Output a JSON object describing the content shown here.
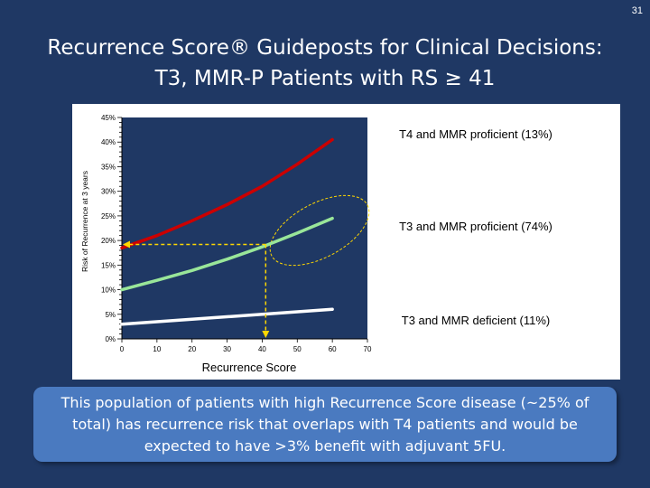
{
  "slide": {
    "number": "31"
  },
  "title": {
    "line1": "Recurrence Score® Guideposts for Clinical Decisions:",
    "line2": "T3, MMR-P Patients with RS ≥ 41"
  },
  "chart_data": {
    "type": "line",
    "xlabel": "Recurrence Score",
    "ylabel": "Risk of Recurrence at 3 years",
    "xlim": [
      0,
      70
    ],
    "ylim": [
      0,
      45
    ],
    "x_ticks": [
      "0",
      "10",
      "20",
      "30",
      "40",
      "50",
      "60",
      "70"
    ],
    "y_ticks": [
      "0%",
      "5%",
      "10%",
      "15%",
      "20%",
      "25%",
      "30%",
      "35%",
      "40%",
      "45%"
    ],
    "grid": false,
    "series": [
      {
        "name": "T4 and MMR proficient (13%)",
        "color": "#cc0000",
        "x": [
          0,
          10,
          20,
          30,
          40,
          50,
          60
        ],
        "y": [
          18.5,
          21.0,
          24.0,
          27.3,
          31.0,
          35.5,
          40.5
        ]
      },
      {
        "name": "T3 and MMR proficient (74%)",
        "color": "#99e699",
        "x": [
          0,
          10,
          20,
          30,
          40,
          50,
          60
        ],
        "y": [
          10.0,
          11.9,
          13.9,
          16.2,
          18.7,
          21.5,
          24.5
        ]
      },
      {
        "name": "T3 and MMR deficient (11%)",
        "color": "#ffffff",
        "x": [
          0,
          60
        ],
        "y": [
          3.0,
          6.0
        ]
      }
    ],
    "annotations": {
      "guide_x": 41,
      "guide_y": 19.2,
      "guide_color": "#ffd700",
      "ellipse_color": "#ffd700"
    }
  },
  "callout": {
    "text": "This population of patients with high Recurrence Score disease (~25% of total) has recurrence risk that overlaps with T4 patients and would be expected to have >3% benefit with adjuvant 5FU."
  }
}
